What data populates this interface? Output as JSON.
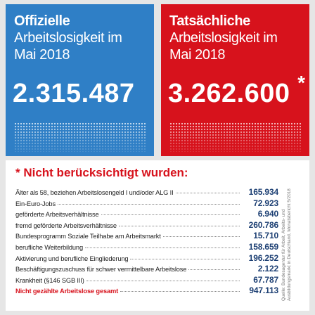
{
  "official": {
    "lines": [
      "Offizielle",
      "Arbeitslosigkeit im",
      "Mai 2018"
    ],
    "number": "2.315.487"
  },
  "actual": {
    "lines": [
      "Tatsächliche",
      "Arbeitslosigkeit im",
      "Mai 2018"
    ],
    "number": "3.262.600",
    "mark": "*"
  },
  "panel": {
    "title": "* Nicht berücksichtigt wurden:",
    "rows": [
      [
        "Älter als 58, beziehen Arbeitslosengeld I und/oder ALG II",
        "165.934"
      ],
      [
        "Ein-Euro-Jobs",
        "72.923"
      ],
      [
        "geförderte Arbeitsverhältnisse",
        "6.940"
      ],
      [
        "fremd geförderte Arbeitsverhältnisse",
        "260.786"
      ],
      [
        "Bundesprogramm Soziale Teilhabe am Arbeitsmarkt",
        "15.710"
      ],
      [
        "berufliche Weiterbildung",
        "158.659"
      ],
      [
        "Aktivierung und berufliche Eingliederung",
        "196.252"
      ],
      [
        "Beschäftigungszuschuss für schwer vermittelbare Arbeitslose",
        "2.122"
      ],
      [
        "Krankheit (§146 SGB III)",
        "67.787"
      ]
    ],
    "total": [
      "Nicht gezählte Arbeitslose gesamt",
      "947.113"
    ],
    "source": [
      "Quelle: Bundesagentur für Arbeit, Arbeits- und",
      "Ausbildungsmarkt in Deutschland, Monatsbericht 5/2018"
    ]
  }
}
